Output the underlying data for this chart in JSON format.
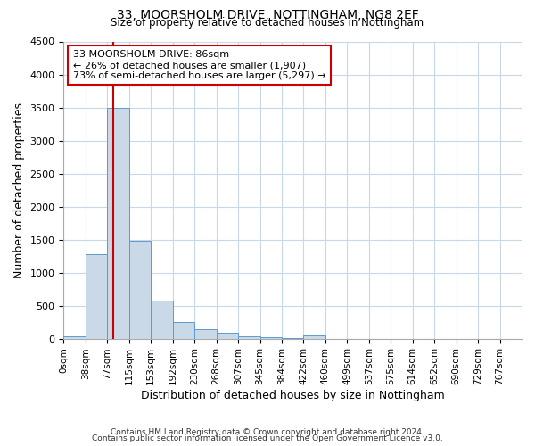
{
  "title_line1": "33, MOORSHOLM DRIVE, NOTTINGHAM, NG8 2EF",
  "title_line2": "Size of property relative to detached houses in Nottingham",
  "xlabel": "Distribution of detached houses by size in Nottingham",
  "ylabel": "Number of detached properties",
  "bin_labels": [
    "0sqm",
    "38sqm",
    "77sqm",
    "115sqm",
    "153sqm",
    "192sqm",
    "230sqm",
    "268sqm",
    "307sqm",
    "345sqm",
    "384sqm",
    "422sqm",
    "460sqm",
    "499sqm",
    "537sqm",
    "575sqm",
    "614sqm",
    "652sqm",
    "690sqm",
    "729sqm",
    "767sqm"
  ],
  "bar_heights": [
    30,
    1280,
    3500,
    1480,
    575,
    250,
    140,
    90,
    40,
    15,
    10,
    50,
    0,
    0,
    0,
    0,
    0,
    0,
    0,
    0,
    0
  ],
  "bar_color": "#c9d9e8",
  "bar_edge_color": "#5b9bd5",
  "vline_x": 86,
  "vline_color": "#cc0000",
  "annotation_text": "33 MOORSHOLM DRIVE: 86sqm\n← 26% of detached houses are smaller (1,907)\n73% of semi-detached houses are larger (5,297) →",
  "annotation_box_color": "#ffffff",
  "annotation_box_edge_color": "#cc0000",
  "ylim": [
    0,
    4500
  ],
  "yticks": [
    0,
    500,
    1000,
    1500,
    2000,
    2500,
    3000,
    3500,
    4000,
    4500
  ],
  "background_color": "#ffffff",
  "grid_color": "#c8d8e8",
  "footer_line1": "Contains HM Land Registry data © Crown copyright and database right 2024.",
  "footer_line2": "Contains public sector information licensed under the Open Government Licence v3.0.",
  "bin_width": 38,
  "n_bins": 21
}
